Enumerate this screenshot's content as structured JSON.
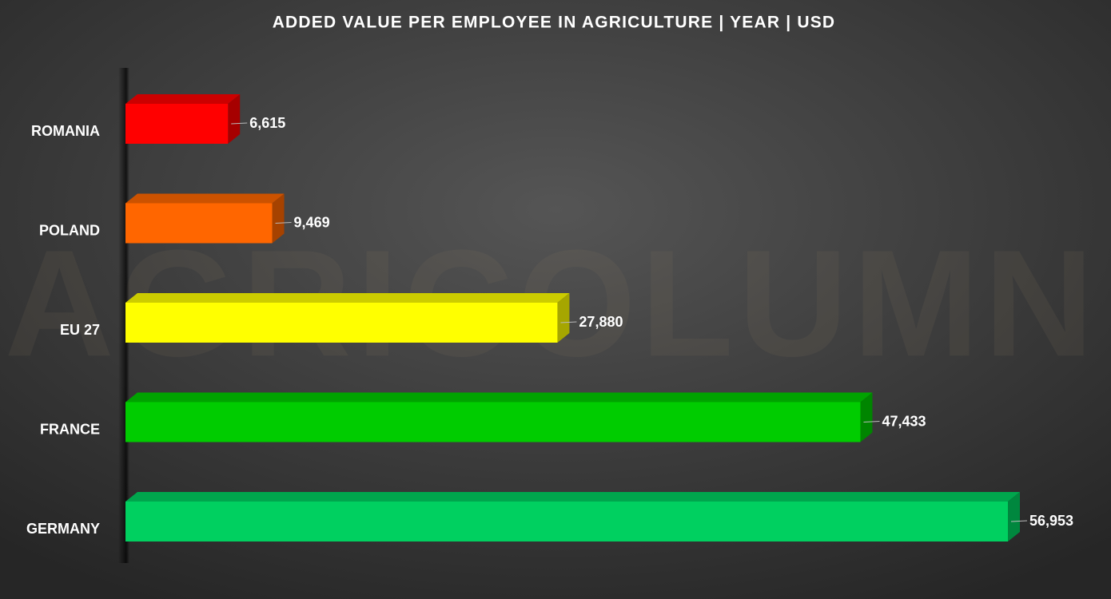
{
  "chart_data": {
    "type": "bar",
    "orientation": "horizontal",
    "three_d": true,
    "title": "ADDED VALUE PER EMPLOYEE IN AGRICULTURE | YEAR | USD",
    "watermark": "AGRICOLUMN",
    "categories": [
      "ROMANIA",
      "POLAND",
      "EU 27",
      "FRANCE",
      "GERMANY"
    ],
    "values": [
      6615,
      9469,
      27880,
      47433,
      56953
    ],
    "value_labels": [
      "6,615",
      "9,469",
      "27,880",
      "47,433",
      "56,953"
    ],
    "colors": [
      "#ff0000",
      "#ff6600",
      "#ffff00",
      "#00cc00",
      "#00d060"
    ]
  }
}
